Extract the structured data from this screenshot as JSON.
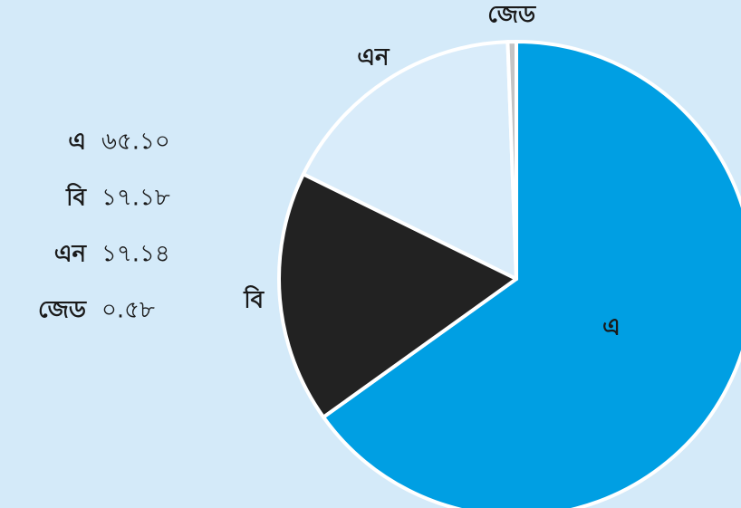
{
  "chart_data": {
    "type": "pie",
    "categories": [
      "এ",
      "বি",
      "এন",
      "জেড"
    ],
    "values": [
      65.1,
      17.18,
      17.14,
      0.58
    ],
    "value_labels": [
      "৬৫.১০",
      "১৭.১৮",
      "১৭.১৪",
      "০.৫৮"
    ],
    "colors": [
      "#009fe3",
      "#222222",
      "#d9ecfa",
      "#c4c4c4"
    ]
  }
}
